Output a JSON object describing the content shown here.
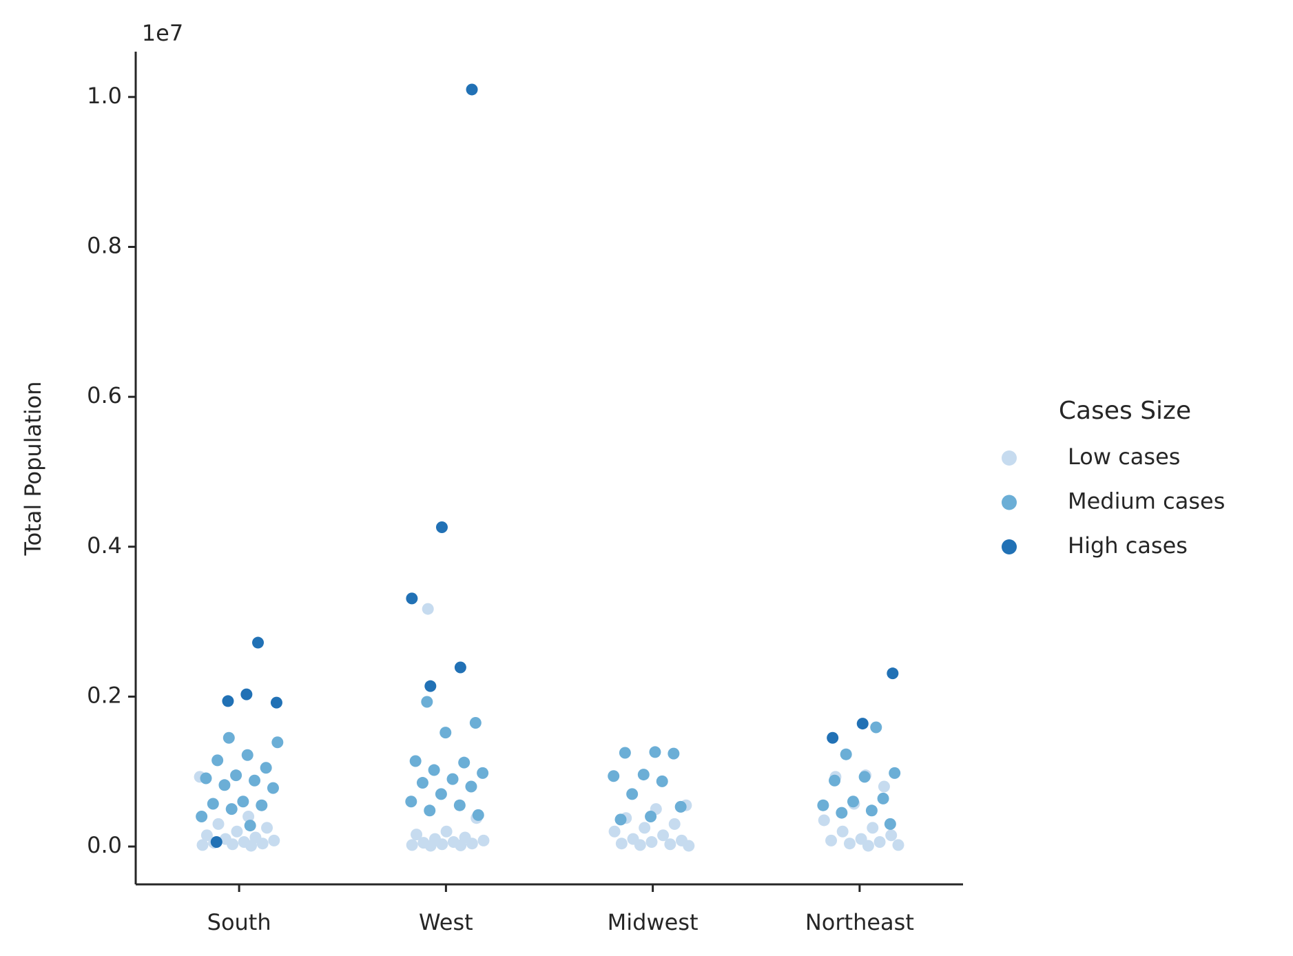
{
  "chart_data": {
    "type": "strip",
    "y_label": "Total Population",
    "y_offset_label": "1e7",
    "categories": [
      "South",
      "West",
      "Midwest",
      "Northeast"
    ],
    "ylim": [
      -505000,
      10605000
    ],
    "yticks": [
      {
        "value": 0,
        "label": "0.0"
      },
      {
        "value": 2000000,
        "label": "0.2"
      },
      {
        "value": 4000000,
        "label": "0.4"
      },
      {
        "value": 6000000,
        "label": "0.6"
      },
      {
        "value": 8000000,
        "label": "0.8"
      },
      {
        "value": 10000000,
        "label": "1.0"
      }
    ],
    "legend_title": "Cases Size",
    "legend_position": "right",
    "series": [
      {
        "name": "Low cases",
        "color": "#c6dbef",
        "x": [
          "South",
          "South",
          "South",
          "South",
          "South",
          "South",
          "South",
          "South",
          "South",
          "South",
          "South",
          "South",
          "South",
          "South",
          "South",
          "West",
          "West",
          "West",
          "West",
          "West",
          "West",
          "West",
          "West",
          "West",
          "West",
          "West",
          "West",
          "West",
          "West",
          "Midwest",
          "Midwest",
          "Midwest",
          "Midwest",
          "Midwest",
          "Midwest",
          "Midwest",
          "Midwest",
          "Midwest",
          "Midwest",
          "Midwest",
          "Midwest",
          "Midwest",
          "Midwest",
          "Northeast",
          "Northeast",
          "Northeast",
          "Northeast",
          "Northeast",
          "Northeast",
          "Northeast",
          "Northeast",
          "Northeast",
          "Northeast",
          "Northeast",
          "Northeast",
          "Northeast",
          "Northeast"
        ],
        "values": [
          930000,
          400000,
          300000,
          250000,
          200000,
          150000,
          120000,
          100000,
          80000,
          60000,
          50000,
          40000,
          30000,
          20000,
          10000,
          3170000,
          380000,
          200000,
          160000,
          120000,
          100000,
          80000,
          60000,
          50000,
          40000,
          30000,
          20000,
          15000,
          10000,
          550000,
          500000,
          380000,
          300000,
          250000,
          200000,
          150000,
          100000,
          80000,
          60000,
          40000,
          30000,
          20000,
          10000,
          950000,
          930000,
          800000,
          570000,
          350000,
          250000,
          200000,
          150000,
          100000,
          80000,
          60000,
          40000,
          20000,
          10000
        ]
      },
      {
        "name": "Medium cases",
        "color": "#6baed6",
        "x": [
          "South",
          "South",
          "South",
          "South",
          "South",
          "South",
          "South",
          "South",
          "South",
          "South",
          "South",
          "South",
          "South",
          "South",
          "South",
          "South",
          "West",
          "West",
          "West",
          "West",
          "West",
          "West",
          "West",
          "West",
          "West",
          "West",
          "West",
          "West",
          "West",
          "West",
          "West",
          "Midwest",
          "Midwest",
          "Midwest",
          "Midwest",
          "Midwest",
          "Midwest",
          "Midwest",
          "Midwest",
          "Midwest",
          "Midwest",
          "Northeast",
          "Northeast",
          "Northeast",
          "Northeast",
          "Northeast",
          "Northeast",
          "Northeast",
          "Northeast",
          "Northeast",
          "Northeast",
          "Northeast"
        ],
        "values": [
          1450000,
          1390000,
          1220000,
          1150000,
          1050000,
          950000,
          910000,
          880000,
          820000,
          780000,
          600000,
          570000,
          550000,
          500000,
          400000,
          280000,
          1930000,
          1650000,
          1520000,
          1140000,
          1120000,
          1020000,
          980000,
          900000,
          850000,
          800000,
          700000,
          600000,
          550000,
          480000,
          420000,
          1260000,
          1250000,
          1240000,
          960000,
          940000,
          870000,
          700000,
          530000,
          400000,
          360000,
          1590000,
          1230000,
          980000,
          930000,
          880000,
          640000,
          600000,
          550000,
          480000,
          450000,
          300000
        ]
      },
      {
        "name": "High cases",
        "color": "#2171b5",
        "x": [
          "South",
          "South",
          "South",
          "South",
          "South",
          "West",
          "West",
          "West",
          "West",
          "West",
          "Northeast",
          "Northeast",
          "Northeast"
        ],
        "values": [
          2720000,
          1940000,
          1920000,
          2030000,
          60000,
          10100000,
          4260000,
          3310000,
          2390000,
          2140000,
          2310000,
          1640000,
          1450000
        ]
      }
    ]
  }
}
